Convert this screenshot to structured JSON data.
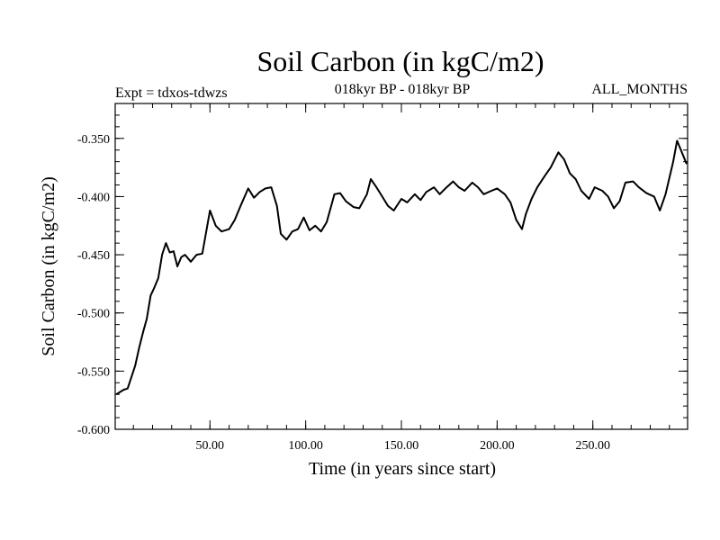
{
  "chart_data": {
    "type": "line",
    "title": "Soil Carbon (in kgC/m2)",
    "subtitle_left": "Expt = tdxos-tdwzs",
    "subtitle_center": "018kyr BP - 018kyr BP",
    "subtitle_right": "ALL_MONTHS",
    "xlabel": "Time (in years since start)",
    "ylabel": "Soil Carbon (in kgC/m2)",
    "xlim": [
      0.5,
      299.5
    ],
    "ylim": [
      -0.6,
      -0.32
    ],
    "xticks": [
      50,
      100,
      150,
      200,
      250
    ],
    "xtick_labels": [
      "50.00",
      "100.00",
      "150.00",
      "200.00",
      "250.00"
    ],
    "yticks": [
      -0.6,
      -0.55,
      -0.5,
      -0.45,
      -0.4,
      -0.35
    ],
    "ytick_labels": [
      "-0.600",
      "-0.550",
      "-0.500",
      "-0.450",
      "-0.400",
      "-0.350"
    ],
    "grid": false,
    "series": [
      {
        "color": "#000000",
        "x": [
          1,
          3,
          5,
          7,
          9,
          11,
          13,
          15,
          17,
          19,
          21,
          23,
          25,
          27,
          29,
          31,
          33,
          35,
          37,
          40,
          43,
          46,
          50,
          53,
          56,
          60,
          63,
          66,
          70,
          73,
          76,
          79,
          82,
          85,
          87,
          90,
          93,
          96,
          99,
          102,
          105,
          108,
          111,
          115,
          118,
          121,
          125,
          128,
          132,
          134,
          137,
          140,
          143,
          146,
          150,
          153,
          157,
          160,
          163,
          167,
          170,
          173,
          177,
          180,
          183,
          187,
          190,
          193,
          197,
          200,
          204,
          207,
          210,
          213,
          215,
          218,
          221,
          225,
          228,
          232,
          235,
          238,
          241,
          244,
          248,
          251,
          255,
          258,
          261,
          264,
          267,
          271,
          274,
          278,
          282,
          285,
          288,
          292,
          294,
          296,
          299
        ],
        "y": [
          -0.57,
          -0.568,
          -0.566,
          -0.565,
          -0.555,
          -0.545,
          -0.53,
          -0.517,
          -0.505,
          -0.485,
          -0.478,
          -0.47,
          -0.45,
          -0.44,
          -0.448,
          -0.447,
          -0.46,
          -0.452,
          -0.45,
          -0.456,
          -0.45,
          -0.449,
          -0.412,
          -0.425,
          -0.43,
          -0.428,
          -0.42,
          -0.408,
          -0.393,
          -0.401,
          -0.396,
          -0.393,
          -0.392,
          -0.408,
          -0.432,
          -0.437,
          -0.43,
          -0.428,
          -0.418,
          -0.429,
          -0.425,
          -0.43,
          -0.422,
          -0.398,
          -0.397,
          -0.404,
          -0.409,
          -0.41,
          -0.398,
          -0.385,
          -0.392,
          -0.4,
          -0.408,
          -0.412,
          -0.402,
          -0.405,
          -0.398,
          -0.403,
          -0.396,
          -0.392,
          -0.398,
          -0.393,
          -0.387,
          -0.392,
          -0.395,
          -0.388,
          -0.392,
          -0.398,
          -0.395,
          -0.393,
          -0.398,
          -0.405,
          -0.42,
          -0.428,
          -0.415,
          -0.402,
          -0.392,
          -0.382,
          -0.375,
          -0.362,
          -0.368,
          -0.38,
          -0.385,
          -0.395,
          -0.402,
          -0.392,
          -0.395,
          -0.4,
          -0.41,
          -0.404,
          -0.388,
          -0.387,
          -0.392,
          -0.397,
          -0.4,
          -0.412,
          -0.398,
          -0.37,
          -0.352,
          -0.36,
          -0.372
        ]
      }
    ]
  }
}
